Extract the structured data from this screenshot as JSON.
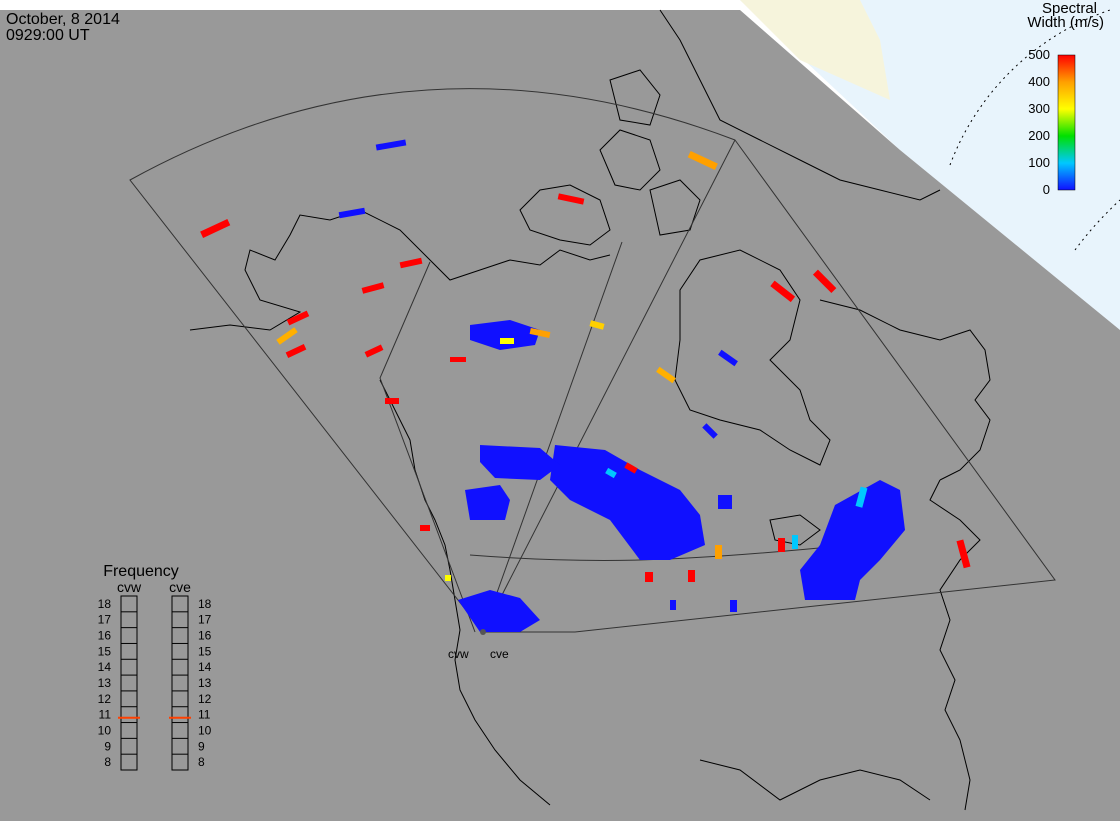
{
  "header": {
    "date": "October, 8 2014",
    "time": "0929:00 UT"
  },
  "colorbar": {
    "title_line1": "Spectral",
    "title_line2": "Width (m/s)",
    "ticks": [
      "500",
      "400",
      "300",
      "200",
      "100",
      "0"
    ],
    "colors": [
      "#1010ff",
      "#00c8ff",
      "#00e000",
      "#ffff00",
      "#ffa000",
      "#ff0000"
    ]
  },
  "frequency": {
    "title": "Frequency",
    "radars": [
      "cvw",
      "cve"
    ],
    "ticks": [
      "18",
      "17",
      "16",
      "15",
      "14",
      "13",
      "12",
      "11",
      "10",
      "9",
      "8"
    ],
    "cvw_mhz": 10.8,
    "cve_mhz": 10.8,
    "marker_color": "#ff4000"
  },
  "map": {
    "site_labels": [
      "cvw",
      "cve"
    ],
    "background": "#999999",
    "line_color": "#000000"
  }
}
